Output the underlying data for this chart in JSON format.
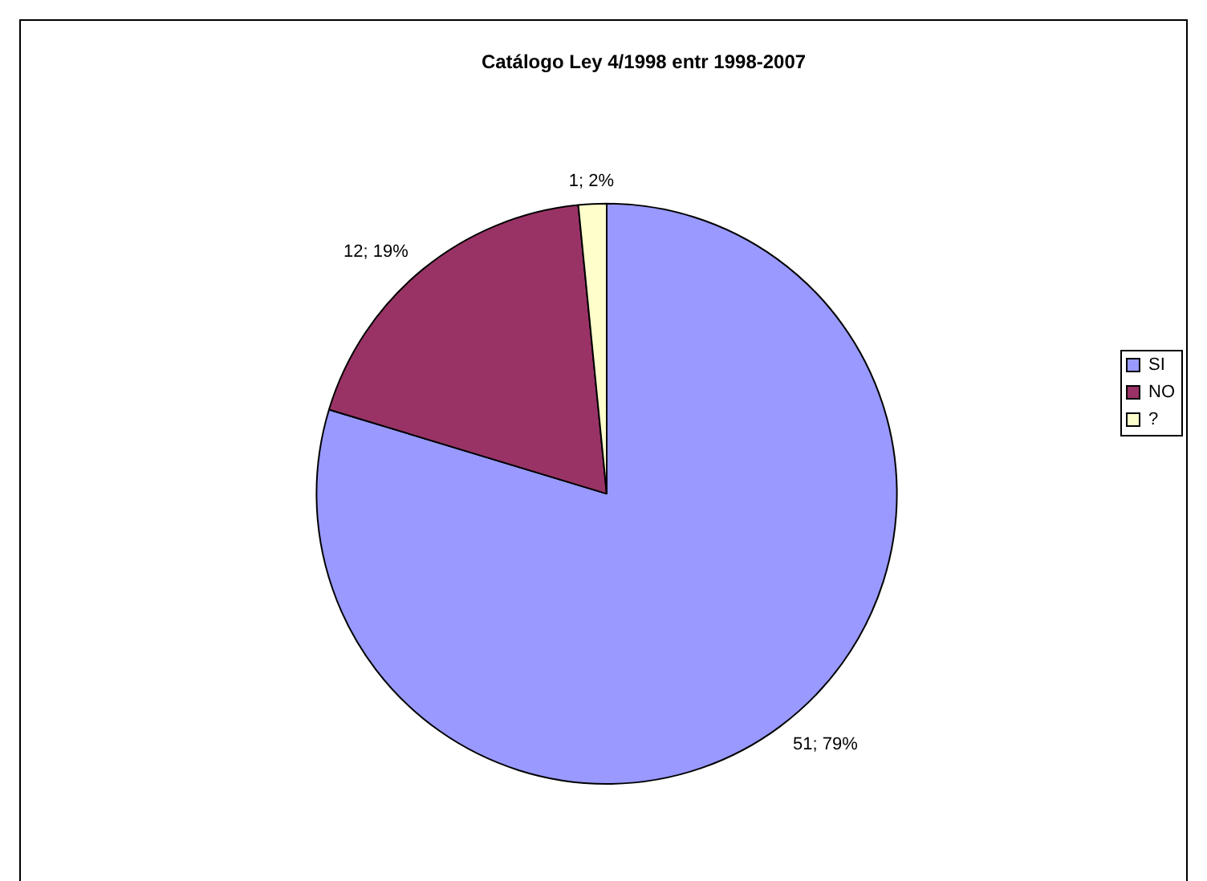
{
  "chart_data": {
    "type": "pie",
    "title": "Catálogo Ley 4/1998 entr 1998-2007",
    "categories": [
      "SI",
      "NO",
      "?"
    ],
    "values": [
      51,
      12,
      1
    ],
    "colors": [
      "#9999ff",
      "#993366",
      "#ffffcc"
    ],
    "value_labels": [
      "51; 79%",
      "12; 19%",
      "1; 2%"
    ],
    "legend": "right"
  }
}
